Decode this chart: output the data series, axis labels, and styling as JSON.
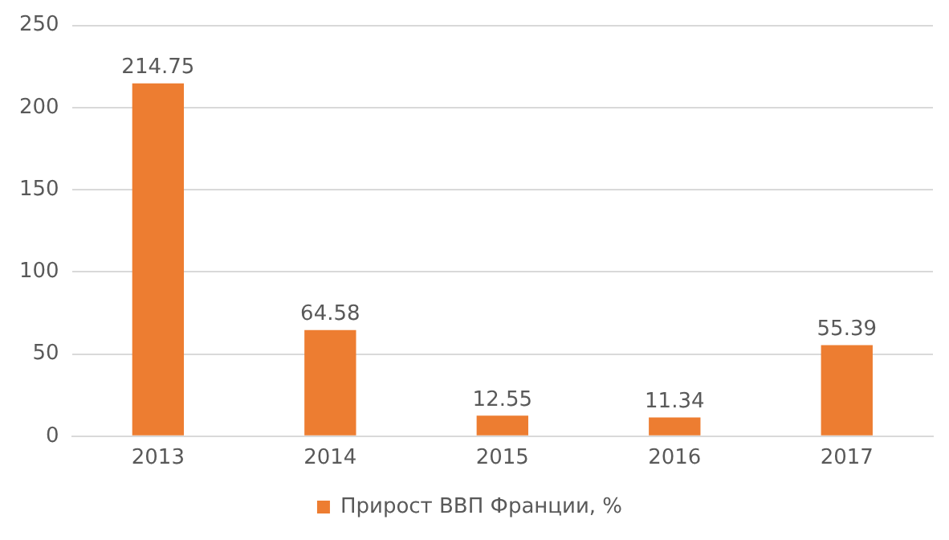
{
  "chart_data": {
    "type": "bar",
    "categories": [
      "2013",
      "2014",
      "2015",
      "2016",
      "2017"
    ],
    "series": [
      {
        "name": "Прирост ВВП Франции, %",
        "color": "#ed7d31",
        "values": [
          214.75,
          64.58,
          12.55,
          11.34,
          55.39
        ]
      }
    ],
    "ylim": [
      0,
      250
    ],
    "yticks": [
      0,
      50,
      100,
      150,
      200,
      250
    ],
    "grid": "y",
    "legend": "bottom",
    "data_labels": true
  }
}
